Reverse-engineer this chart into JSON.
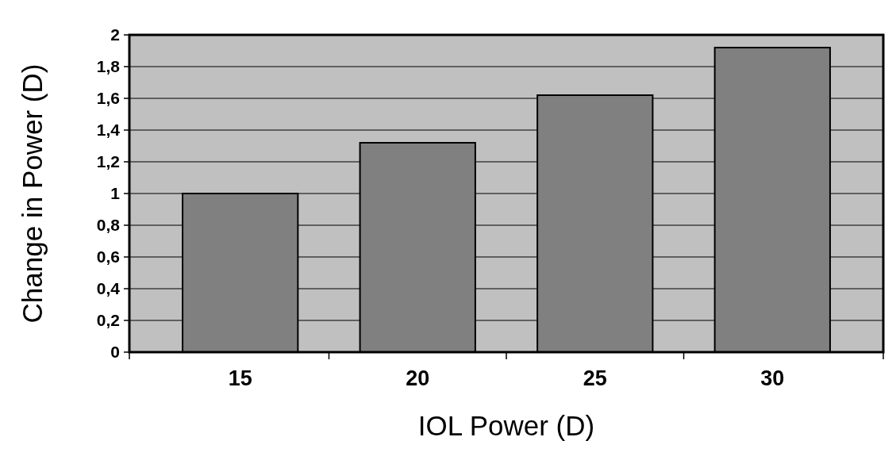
{
  "chart_data": {
    "type": "bar",
    "xlabel": "IOL Power (D)",
    "ylabel": "Change in Power (D)",
    "categories": [
      "15",
      "20",
      "25",
      "30"
    ],
    "values": [
      1.0,
      1.32,
      1.62,
      1.92
    ],
    "color": "#808080",
    "ylim": [
      0,
      2
    ],
    "yticks": [
      0,
      {
        "value": 0.2,
        "label": "0,2"
      },
      {
        "value": 0.4,
        "label": "0,4"
      },
      {
        "value": 0.6,
        "label": "0,6"
      },
      {
        "value": 0.8,
        "label": "0,8"
      },
      1,
      {
        "value": 1.2,
        "label": "1,2"
      },
      {
        "value": 1.4,
        "label": "1,4"
      },
      {
        "value": 1.6,
        "label": "1,6"
      },
      {
        "value": 1.8,
        "label": "1,8"
      },
      2
    ],
    "grid": "y"
  }
}
